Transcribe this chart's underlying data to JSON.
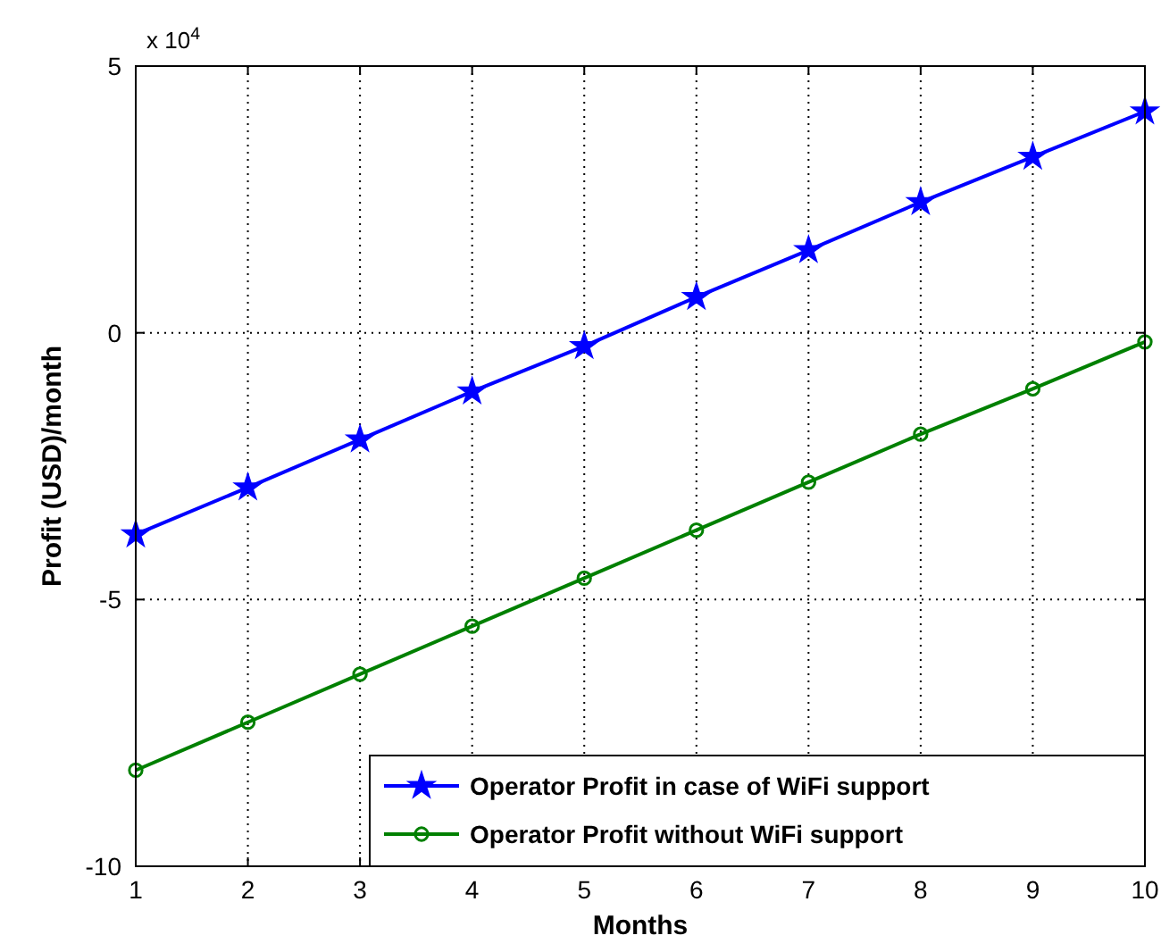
{
  "chart_data": {
    "type": "line",
    "xlabel": "Months",
    "ylabel": "Profit (USD)/month",
    "x": [
      1,
      2,
      3,
      4,
      5,
      6,
      7,
      8,
      9,
      10
    ],
    "series": [
      {
        "name": "Operator Profit in case of WiFi support",
        "color": "#0000ff",
        "marker": "star",
        "values": [
          -3.78,
          -2.9,
          -2.0,
          -1.1,
          -0.25,
          0.67,
          1.55,
          2.45,
          3.3,
          4.15
        ]
      },
      {
        "name": "Operator Profit without WiFi support",
        "color": "#008000",
        "marker": "circle",
        "values": [
          -8.2,
          -7.3,
          -6.4,
          -5.5,
          -4.6,
          -3.7,
          -2.8,
          -1.9,
          -1.05,
          -0.17
        ]
      }
    ],
    "xlim": [
      1,
      10
    ],
    "xticks": [
      1,
      2,
      3,
      4,
      5,
      6,
      7,
      8,
      9,
      10
    ],
    "ylim": [
      -10,
      5
    ],
    "yticks": [
      -10,
      -5,
      0,
      5
    ],
    "annotations": [
      "x 10$^{4}$"
    ],
    "grid": true,
    "legend": "bottom right",
    "line_style": "solid"
  }
}
